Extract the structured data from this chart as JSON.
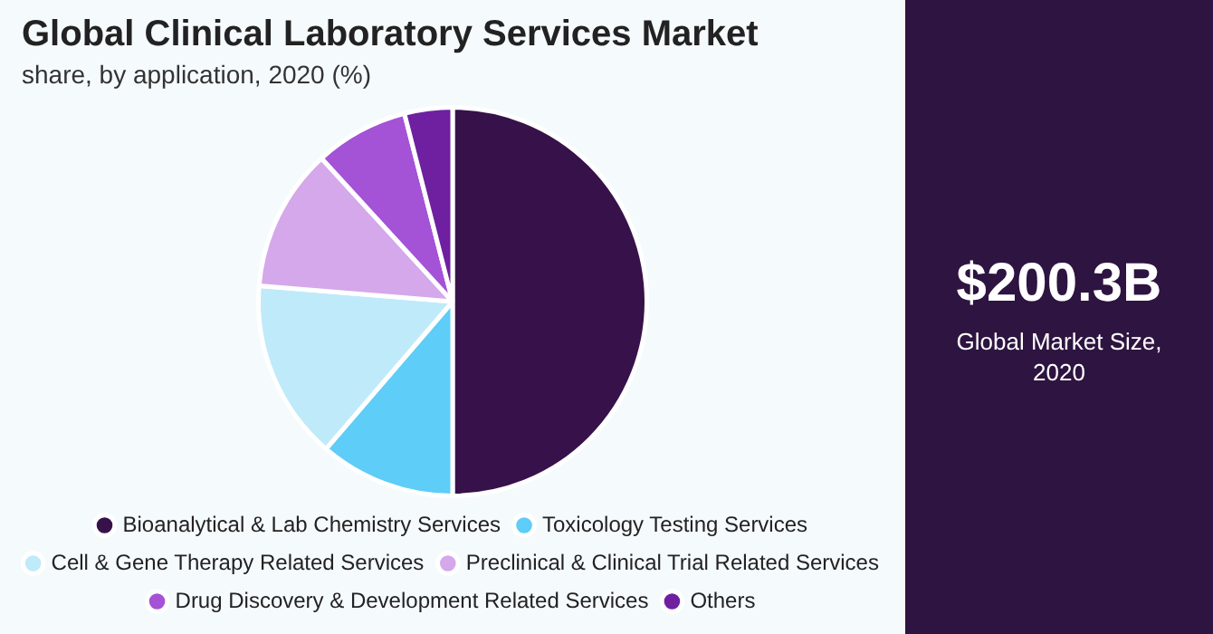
{
  "chart_data": {
    "type": "pie",
    "title": "Global Clinical Laboratory Services Market",
    "subtitle": "share, by application, 2020 (%)",
    "categories": [
      "Bioanalytical & Lab Chemistry Services",
      "Toxicology Testing Services",
      "Cell & Gene Therapy Related Services",
      "Preclinical & Clinical Trial Related Services",
      "Drug Discovery & Development Related Services",
      "Others"
    ],
    "values": [
      50,
      11.3,
      15,
      11.9,
      7.8,
      4
    ],
    "colors": [
      "#37114a",
      "#5ecdf7",
      "#bfeaf9",
      "#d4a8ea",
      "#a452d6",
      "#6e20a0"
    ],
    "legend": "bottom",
    "annotations": [
      "$200.3B",
      "Global Market Size, 2020"
    ]
  }
}
